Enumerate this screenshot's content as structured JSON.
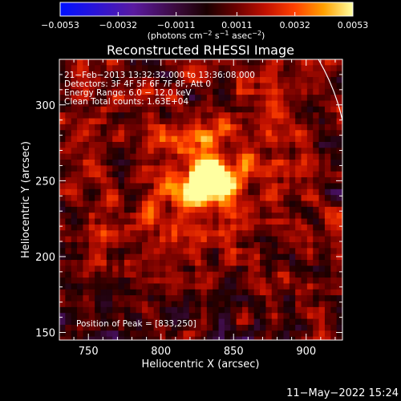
{
  "colorbar": {
    "ticks": [
      "−0.0053",
      "−0.0032",
      "−0.0011",
      "0.0011",
      "0.0032",
      "0.0053"
    ],
    "units_prefix": "(photons cm",
    "units_exp1": "−2",
    "units_mid": " s",
    "units_exp2": "−1",
    "units_suffix": " asec",
    "units_exp3": "−2",
    "units_close": ")",
    "vmin": -0.0053,
    "vmax": 0.0053,
    "colormap": "rainbow-blue-to-red-to-yellow-white"
  },
  "chart_data": {
    "type": "heatmap",
    "title": "Reconstructed RHESSI Image",
    "xlabel": "Heliocentric X (arcsec)",
    "ylabel": "Heliocentric Y (arcsec)",
    "xlim": [
      730,
      925
    ],
    "ylim": [
      145,
      330
    ],
    "x_ticks": [
      "750",
      "800",
      "850",
      "900"
    ],
    "x_tick_values": [
      750,
      800,
      850,
      900
    ],
    "y_ticks": [
      "150",
      "200",
      "250",
      "300"
    ],
    "y_tick_values": [
      150,
      200,
      250,
      300
    ],
    "peak": {
      "x": 833,
      "y": 250
    },
    "info_lines": [
      "21−Feb−2013 13:32:32.000 to 13:36:08.000",
      "Detectors: 3F 4F 5F 6F 7F 8F, Att 0",
      "Energy Range: 6.0 − 12.0 keV",
      "Clean     Total counts: 1.63E+04"
    ],
    "peak_label": "Position of Peak = [833,250]",
    "limb_visible": true
  },
  "footer": {
    "date": "11−May−2022 15:24"
  }
}
